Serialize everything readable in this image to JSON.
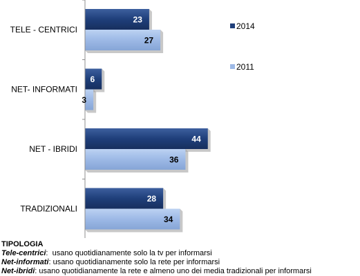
{
  "chart_data": {
    "type": "bar",
    "orientation": "horizontal",
    "categories": [
      "TELE - CENTRICI",
      "NET- INFORMATI",
      "NET - IBRIDI",
      "TRADIZIONALI"
    ],
    "series": [
      {
        "name": "2014",
        "values": [
          23,
          6,
          44,
          28
        ],
        "color": "#1f3f7a"
      },
      {
        "name": "2011",
        "values": [
          27,
          3,
          36,
          34
        ],
        "color": "#9db9e6"
      }
    ],
    "xlim": [
      0,
      50
    ],
    "grid": false,
    "legend_position": "right"
  },
  "notes": {
    "heading": "TIPOLOGIA",
    "items": [
      {
        "term": "Tele-centrici",
        "sep": ":",
        "text": "  usano quotidianamente solo la tv per informarsi"
      },
      {
        "term": "Net-informati",
        "sep": ":",
        "text": " usano quotidianamente solo la rete per informarsi"
      },
      {
        "term": "Net-ibridi",
        "sep": ":",
        "text": " usano quotidianamente la rete e almeno uno dei media tradizionali per informarsi"
      }
    ]
  }
}
